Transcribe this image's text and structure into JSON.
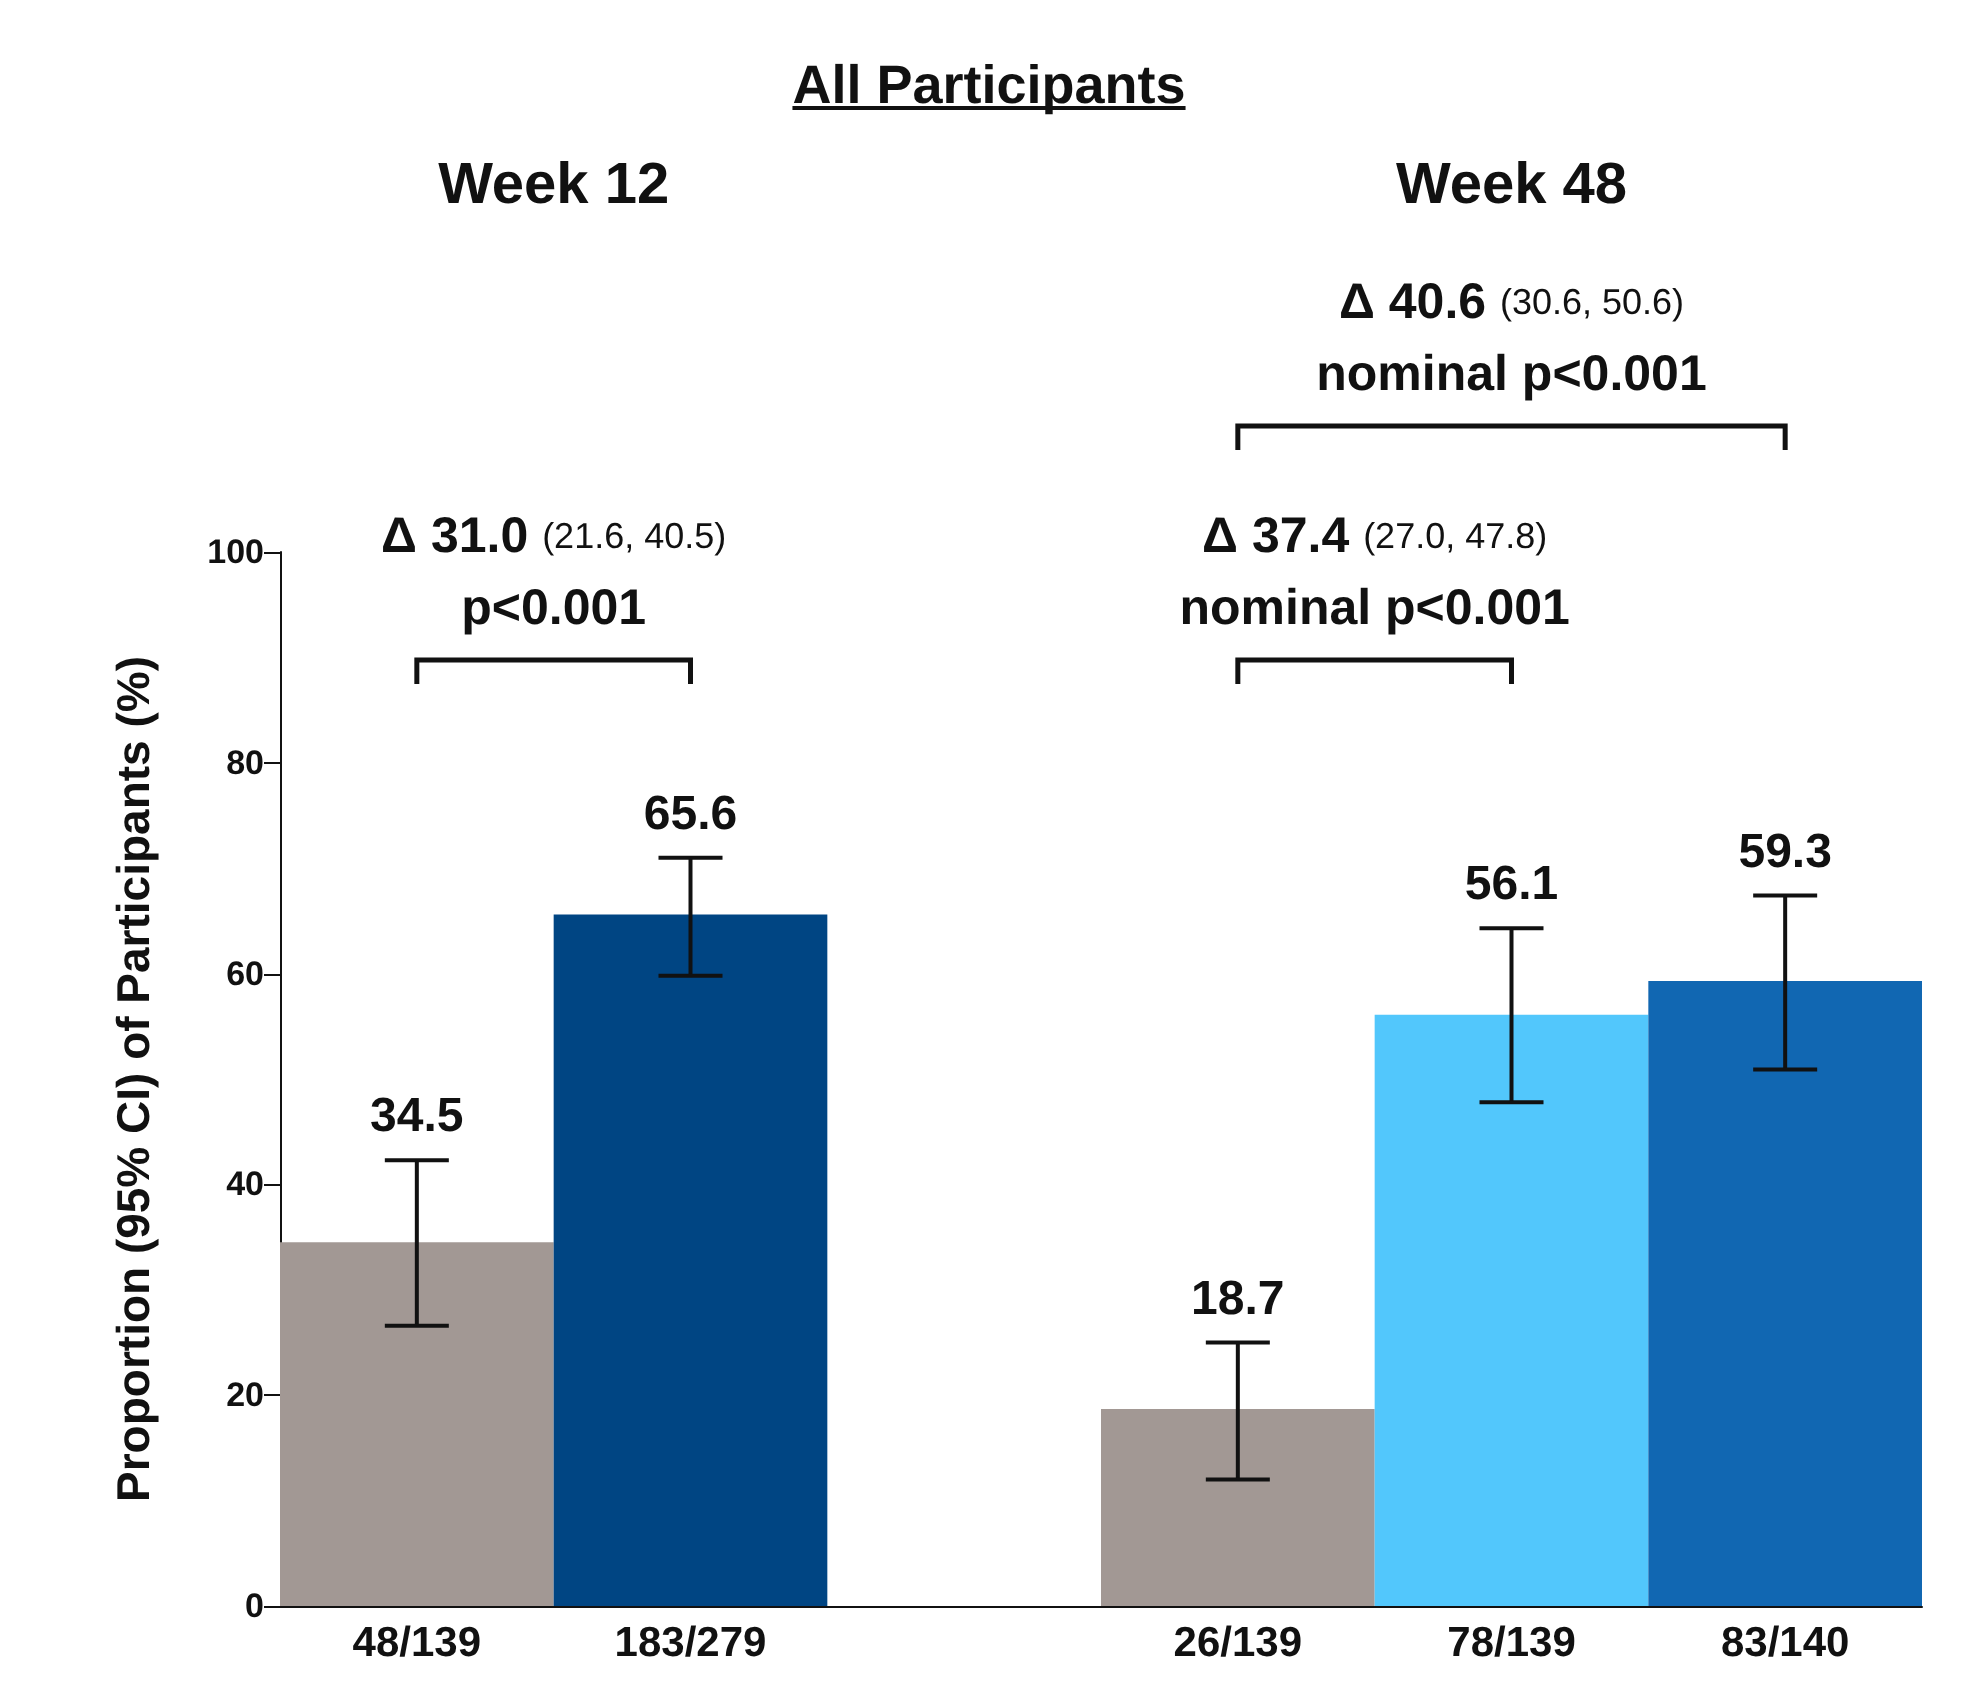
{
  "chart_data": {
    "type": "bar",
    "title": "All Participants",
    "ylabel": "Proportion (95% CI) of Participants (%)",
    "categories": [
      "48/139",
      "183/279",
      null,
      "26/139",
      "78/139",
      "83/140"
    ],
    "values": [
      34.5,
      65.6,
      null,
      18.7,
      56.1,
      59.3
    ],
    "colors": [
      "#a29894",
      "#004583",
      null,
      "#a29894",
      "#52c7fc",
      "#1167b2"
    ],
    "errors": [
      [
        26.6,
        42.3
      ],
      [
        59.8,
        71.0
      ],
      null,
      [
        12.0,
        25.0
      ],
      [
        47.8,
        64.3
      ],
      [
        50.9,
        67.4
      ]
    ],
    "data_labels": true,
    "ylim": [
      0,
      100
    ],
    "yticks": [
      0,
      20,
      40,
      60,
      80,
      100
    ],
    "grid": false,
    "annotations": [
      "Week 12",
      "Week 48",
      "Δ 31.0 (21.6, 40.5)\np<0.001",
      "Δ 37.4 (27.0, 47.8)\nnominal p<0.001",
      "Δ 40.6 (30.6, 50.6)\nnominal p<0.001"
    ]
  }
}
